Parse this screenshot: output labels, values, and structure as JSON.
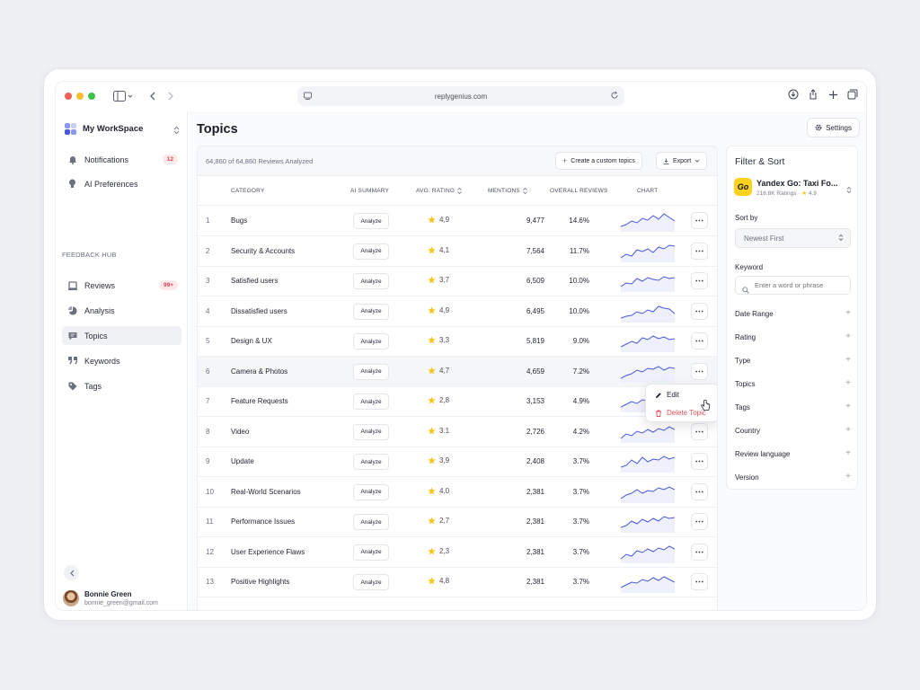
{
  "browser": {
    "url": "replygenius.com"
  },
  "workspace": {
    "name": "My WorkSpace"
  },
  "sidebar": {
    "top_items": [
      {
        "label": "Notifications",
        "badge": "12"
      },
      {
        "label": "AI Preferences",
        "badge": ""
      }
    ],
    "section_label": "FEEDBACK HUB",
    "hub_items": [
      {
        "label": "Reviews",
        "badge": "99+"
      },
      {
        "label": "Analysis",
        "badge": ""
      },
      {
        "label": "Topics",
        "badge": "",
        "active": true
      },
      {
        "label": "Keywords",
        "badge": ""
      },
      {
        "label": "Tags",
        "badge": ""
      }
    ],
    "user": {
      "name": "Bonnie Green",
      "email": "bonnie_green@gmail.com"
    }
  },
  "page": {
    "title": "Topics",
    "settings_label": "Settings",
    "reviews_analyzed": "64,860 of 64,860 Reviews Analyzed",
    "create_label": "Create a custom topics",
    "export_label": "Export"
  },
  "table": {
    "columns": {
      "category": "CATEGORY",
      "ai_summary": "AI SUMMARY",
      "avg_rating": "AVG. RATING",
      "mentions": "MENTIONS",
      "overall": "OVERALL REVIEWS",
      "chart": "CHART"
    },
    "analyze_label": "Analyze",
    "rows": [
      {
        "n": "1",
        "category": "Bugs",
        "rating": "4,9",
        "mentions": "9,477",
        "overall": "14.6%"
      },
      {
        "n": "2",
        "category": "Security & Accounts",
        "rating": "4,1",
        "mentions": "7,564",
        "overall": "11.7%"
      },
      {
        "n": "3",
        "category": "Satisfied users",
        "rating": "3,7",
        "mentions": "6,509",
        "overall": "10.0%"
      },
      {
        "n": "4",
        "category": "Dissatisfied users",
        "rating": "4,9",
        "mentions": "6,495",
        "overall": "10.0%"
      },
      {
        "n": "5",
        "category": "Design & UX",
        "rating": "3,3",
        "mentions": "5,819",
        "overall": "9.0%"
      },
      {
        "n": "6",
        "category": "Camera & Photos",
        "rating": "4,7",
        "mentions": "4,659",
        "overall": "7.2%"
      },
      {
        "n": "7",
        "category": "Feature Requests",
        "rating": "2,8",
        "mentions": "3,153",
        "overall": "4.9%"
      },
      {
        "n": "8",
        "category": "Video",
        "rating": "3.1",
        "mentions": "2,726",
        "overall": "4.2%"
      },
      {
        "n": "9",
        "category": "Update",
        "rating": "3,9",
        "mentions": "2,408",
        "overall": "3.7%"
      },
      {
        "n": "10",
        "category": "Real-World Scenarios",
        "rating": "4,0",
        "mentions": "2,381",
        "overall": "3.7%"
      },
      {
        "n": "11",
        "category": "Performance Issues",
        "rating": "2,7",
        "mentions": "2,381",
        "overall": "3.7%"
      },
      {
        "n": "12",
        "category": "User Experience Flaws",
        "rating": "2,3",
        "mentions": "2,381",
        "overall": "3.7%"
      },
      {
        "n": "13",
        "category": "Positive Highlights",
        "rating": "4,8",
        "mentions": "2,381",
        "overall": "3.7%"
      }
    ]
  },
  "context_menu": {
    "edit": "Edit",
    "delete": "Delete Topic"
  },
  "filter": {
    "title": "Filter & Sort",
    "app": {
      "name": "Yandex Go: Taxi Fo...",
      "ratings": "216.8K Ratings",
      "score": "4.9",
      "logo_text": "Go"
    },
    "sort_label": "Sort by",
    "sort_value": "Newest First",
    "keyword_label": "Keyword",
    "keyword_placeholder": "Enter a word or phrase",
    "filters": [
      "Date Range",
      "Rating",
      "Type",
      "Topics",
      "Tags",
      "Country",
      "Review language",
      "Version"
    ]
  },
  "colors": {
    "accent": "#4a57d9",
    "star": "#f5c518",
    "badge_bg": "#fde8ea",
    "badge_text": "#d9404e",
    "delete": "#e0525d"
  }
}
